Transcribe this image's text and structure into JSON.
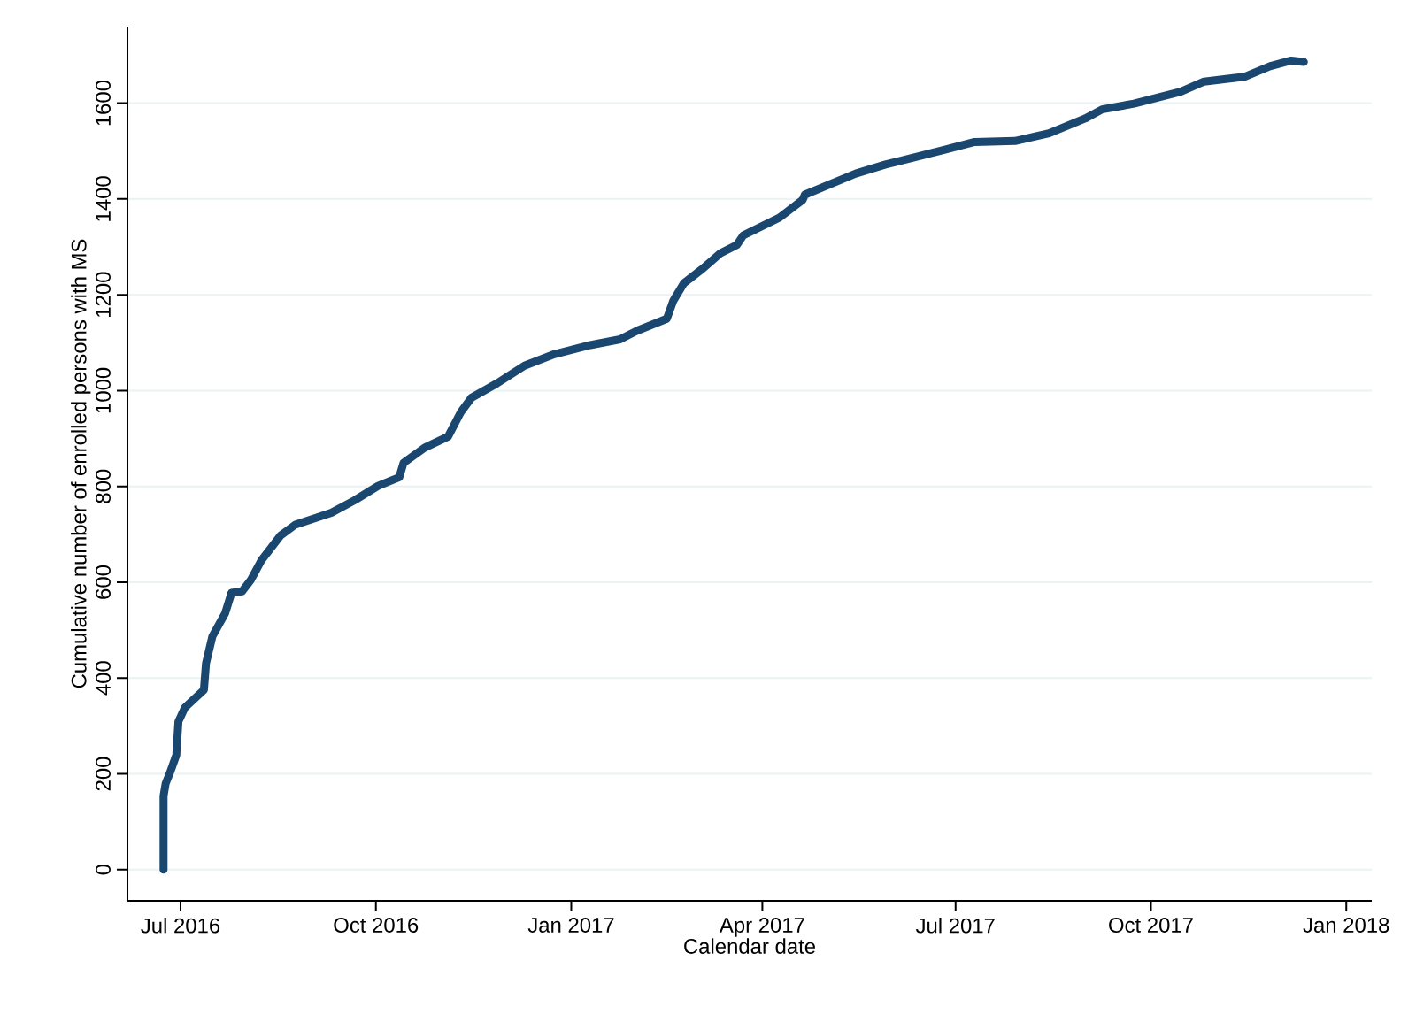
{
  "chart_data": {
    "type": "line",
    "xlabel": "Calendar date",
    "ylabel": "Cumulative number of enrolled persons with MS",
    "x": [
      "2016-06-23",
      "2016-06-23",
      "2016-06-24",
      "2016-06-26",
      "2016-06-29",
      "2016-06-30",
      "2016-07-03",
      "2016-07-12",
      "2016-07-13",
      "2016-07-16",
      "2016-07-22",
      "2016-07-25",
      "2016-07-30",
      "2016-08-03",
      "2016-08-08",
      "2016-08-17",
      "2016-08-24",
      "2016-09-10",
      "2016-09-21",
      "2016-10-02",
      "2016-10-12",
      "2016-10-14",
      "2016-10-24",
      "2016-11-04",
      "2016-11-10",
      "2016-11-15",
      "2016-11-27",
      "2016-12-10",
      "2016-12-24",
      "2017-01-10",
      "2017-01-24",
      "2017-02-01",
      "2017-02-15",
      "2017-02-18",
      "2017-02-23",
      "2017-03-04",
      "2017-03-12",
      "2017-03-20",
      "2017-03-23",
      "2017-04-09",
      "2017-04-20",
      "2017-04-21",
      "2017-05-15",
      "2017-05-29",
      "2017-06-26",
      "2017-07-10",
      "2017-07-29",
      "2017-08-14",
      "2017-08-31",
      "2017-09-08",
      "2017-09-23",
      "2017-10-15",
      "2017-10-26",
      "2017-11-14",
      "2017-11-26",
      "2017-12-06",
      "2017-12-12"
    ],
    "series": [
      {
        "color": "#1a476f",
        "values": [
          0,
          154,
          180,
          202,
          239,
          309,
          338,
          375,
          431,
          487,
          535,
          578,
          581,
          604,
          645,
          697,
          720,
          745,
          771,
          801,
          819,
          849,
          881,
          904,
          955,
          985,
          1015,
          1052,
          1076,
          1095,
          1107,
          1125,
          1150,
          1187,
          1224,
          1255,
          1286,
          1304,
          1324,
          1361,
          1398,
          1409,
          1453,
          1472,
          1503,
          1519,
          1521,
          1537,
          1568,
          1587,
          1599,
          1624,
          1645,
          1655,
          1677,
          1689,
          1686
        ]
      }
    ],
    "xlim": [
      "2016-06-06",
      "2018-01-13"
    ],
    "ylim": [
      -65,
      1760
    ],
    "xticks": [
      {
        "value": "2016-07-01",
        "label": "Jul 2016"
      },
      {
        "value": "2016-10-01",
        "label": "Oct 2016"
      },
      {
        "value": "2017-01-01",
        "label": "Jan 2017"
      },
      {
        "value": "2017-04-01",
        "label": "Apr 2017"
      },
      {
        "value": "2017-07-01",
        "label": "Jul 2017"
      },
      {
        "value": "2017-10-01",
        "label": "Oct 2017"
      },
      {
        "value": "2018-01-01",
        "label": "Jan 2018"
      }
    ],
    "yticks": [
      0,
      200,
      400,
      600,
      800,
      1000,
      1200,
      1400,
      1600
    ],
    "grid": "y"
  }
}
